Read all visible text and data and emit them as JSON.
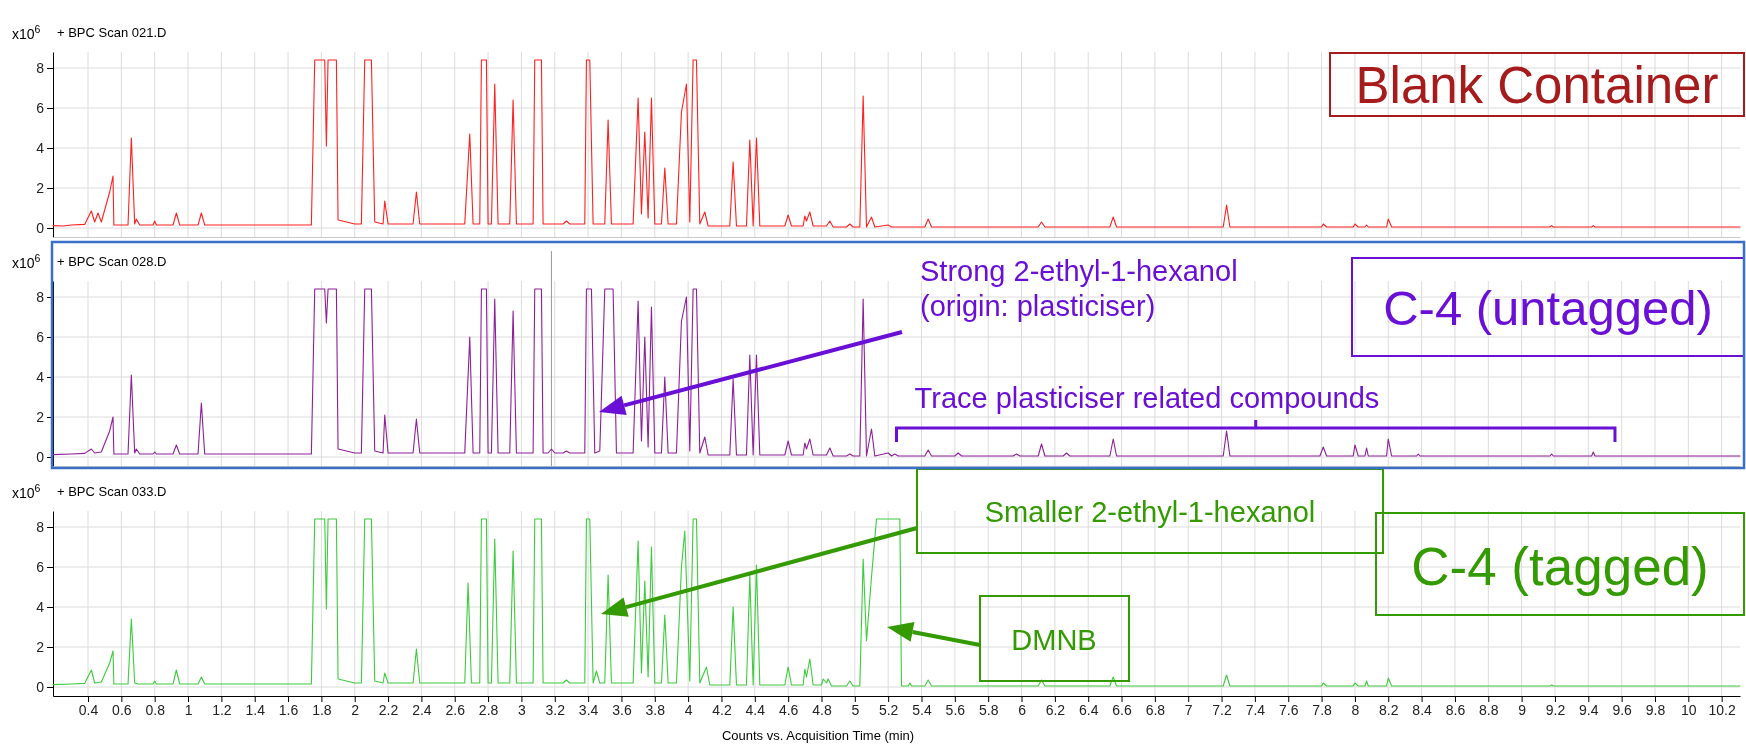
{
  "chart_data": [
    {
      "type": "line",
      "title": "+ BPC Scan 021.D",
      "ylabel": "x10$^{6}$",
      "color": "#ff2020",
      "grid": true,
      "tick_labels": "y",
      "xlim": [
        0.19,
        10.31
      ],
      "ylim": [
        -0.45,
        8.8
      ],
      "yticks": [
        0,
        2,
        4,
        6,
        8
      ],
      "xticks": [
        0.4,
        0.6,
        0.8,
        1,
        1.2,
        1.4,
        1.6,
        1.8,
        2,
        2.2,
        2.4,
        2.6,
        2.8,
        3,
        3.2,
        3.4,
        3.6,
        3.8,
        4,
        4.2,
        4.4,
        4.6,
        4.8,
        5,
        5.2,
        5.4,
        5.6,
        5.8,
        6,
        6.2,
        6.4,
        6.6,
        6.8,
        7,
        7.2,
        7.4,
        7.6,
        7.8,
        8,
        8.2,
        8.4,
        8.6,
        8.8,
        9,
        9.2,
        9.4,
        9.6,
        9.8,
        10,
        10.2
      ],
      "x": [
        0.19,
        0.25,
        0.3,
        0.38,
        0.42,
        0.44,
        0.46,
        0.48,
        0.5,
        0.53,
        0.55,
        0.555,
        0.64,
        0.66,
        0.68,
        0.69,
        0.71,
        0.79,
        0.8,
        0.81,
        0.91,
        0.93,
        0.95,
        1.06,
        1.08,
        1.1,
        1.74,
        1.76,
        1.82,
        1.83,
        1.84,
        1.89,
        1.9,
        2.0,
        2.04,
        2.06,
        2.1,
        2.12,
        2.17,
        2.18,
        2.2,
        2.35,
        2.37,
        2.39,
        2.66,
        2.69,
        2.71,
        2.75,
        2.76,
        2.79,
        2.8,
        2.82,
        2.84,
        2.86,
        2.93,
        2.95,
        2.97,
        3.07,
        3.08,
        3.12,
        3.13,
        3.25,
        3.27,
        3.29,
        3.38,
        3.39,
        3.41,
        3.43,
        3.5,
        3.52,
        3.54,
        3.67,
        3.7,
        3.72,
        3.74,
        3.76,
        3.78,
        3.8,
        3.84,
        3.86,
        3.88,
        3.93,
        3.96,
        3.99,
        4.01,
        4.03,
        4.05,
        4.07,
        4.1,
        4.12,
        4.25,
        4.27,
        4.29,
        4.35,
        4.37,
        4.39,
        4.41,
        4.43,
        4.58,
        4.6,
        4.62,
        4.69,
        4.7,
        4.71,
        4.73,
        4.75,
        4.83,
        4.85,
        4.87,
        4.95,
        4.97,
        4.99,
        5.03,
        5.05,
        5.07,
        5.1,
        5.12,
        5.2,
        5.22,
        5.42,
        5.44,
        5.46,
        6.1,
        6.12,
        6.14,
        6.53,
        6.55,
        6.57,
        7.21,
        7.23,
        7.25,
        7.8,
        7.81,
        7.83,
        7.99,
        8.0,
        8.02,
        8.06,
        8.07,
        8.08,
        8.19,
        8.2,
        8.22,
        9.17,
        9.18,
        9.19,
        9.42,
        9.43,
        9.44,
        10.31
      ],
      "values": [
        0.12,
        0.1,
        0.15,
        0.18,
        0.85,
        0.3,
        0.75,
        0.3,
        0.9,
        1.8,
        2.6,
        0.15,
        0.15,
        4.5,
        0.2,
        0.45,
        0.15,
        0.15,
        0.35,
        0.15,
        0.15,
        0.75,
        0.15,
        0.15,
        0.75,
        0.15,
        0.15,
        8.4,
        8.4,
        4.1,
        8.4,
        8.4,
        0.4,
        0.2,
        0.2,
        8.4,
        8.4,
        0.3,
        0.2,
        1.35,
        0.2,
        0.2,
        1.8,
        0.2,
        0.2,
        4.7,
        0.2,
        0.2,
        8.4,
        8.4,
        0.2,
        0.2,
        7.2,
        0.2,
        0.2,
        6.4,
        0.2,
        0.2,
        8.4,
        8.4,
        0.2,
        0.2,
        0.35,
        0.2,
        0.2,
        8.4,
        8.4,
        0.2,
        0.2,
        5.4,
        0.2,
        0.2,
        6.5,
        0.7,
        4.8,
        0.5,
        6.5,
        0.2,
        0.2,
        3.0,
        0.2,
        0.2,
        5.8,
        7.2,
        0.3,
        8.4,
        8.4,
        0.2,
        0.8,
        0.1,
        0.1,
        3.3,
        0.1,
        0.1,
        4.4,
        0.1,
        4.5,
        0.1,
        0.1,
        0.65,
        0.1,
        0.1,
        0.6,
        0.35,
        0.8,
        0.1,
        0.1,
        0.35,
        0.05,
        0.05,
        0.2,
        0.05,
        0.05,
        6.6,
        0.05,
        0.55,
        0.05,
        0.15,
        0.05,
        0.05,
        0.45,
        0.05,
        0.05,
        0.3,
        0.05,
        0.05,
        0.55,
        0.05,
        0.05,
        1.15,
        0.05,
        0.05,
        0.2,
        0.05,
        0.05,
        0.2,
        0.05,
        0.05,
        0.15,
        0.05,
        0.05,
        0.45,
        0.05,
        0.05,
        0.12,
        0.05,
        0.05,
        0.12,
        0.05,
        0.05
      ],
      "annotations": [
        "Blank Container"
      ]
    },
    {
      "type": "line",
      "title": "+ BPC Scan 028.D",
      "ylabel": "x10$^{6}$",
      "color": "#8e1f9a",
      "grid": true,
      "tick_labels": "y",
      "xlim": [
        0.19,
        10.31
      ],
      "ylim": [
        -0.45,
        8.8
      ],
      "yticks": [
        0,
        2,
        4,
        6,
        8
      ],
      "xticks": [
        0.4,
        0.6,
        0.8,
        1,
        1.2,
        1.4,
        1.6,
        1.8,
        2,
        2.2,
        2.4,
        2.6,
        2.8,
        3,
        3.2,
        3.4,
        3.6,
        3.8,
        4,
        4.2,
        4.4,
        4.6,
        4.8,
        5,
        5.2,
        5.4,
        5.6,
        5.8,
        6,
        6.2,
        6.4,
        6.6,
        6.8,
        7,
        7.2,
        7.4,
        7.6,
        7.8,
        8,
        8.2,
        8.4,
        8.6,
        8.8,
        9,
        9.2,
        9.4,
        9.6,
        9.8,
        10,
        10.2
      ],
      "x": [
        0.19,
        0.3,
        0.38,
        0.42,
        0.44,
        0.48,
        0.53,
        0.55,
        0.555,
        0.64,
        0.66,
        0.68,
        0.69,
        0.71,
        0.79,
        0.8,
        0.81,
        0.91,
        0.93,
        0.95,
        1.06,
        1.08,
        1.1,
        1.74,
        1.76,
        1.82,
        1.83,
        1.84,
        1.89,
        1.9,
        2.0,
        2.04,
        2.06,
        2.1,
        2.12,
        2.17,
        2.18,
        2.2,
        2.35,
        2.37,
        2.39,
        2.66,
        2.69,
        2.71,
        2.75,
        2.76,
        2.79,
        2.8,
        2.82,
        2.84,
        2.86,
        2.93,
        2.95,
        2.97,
        3.07,
        3.08,
        3.12,
        3.13,
        3.16,
        3.18,
        3.2,
        3.25,
        3.27,
        3.29,
        3.38,
        3.39,
        3.42,
        3.44,
        3.47,
        3.5,
        3.55,
        3.57,
        3.67,
        3.7,
        3.72,
        3.74,
        3.76,
        3.78,
        3.8,
        3.84,
        3.86,
        3.88,
        3.93,
        3.96,
        3.99,
        4.01,
        4.03,
        4.05,
        4.07,
        4.1,
        4.12,
        4.25,
        4.27,
        4.29,
        4.35,
        4.37,
        4.39,
        4.41,
        4.43,
        4.58,
        4.6,
        4.62,
        4.69,
        4.7,
        4.71,
        4.73,
        4.75,
        4.83,
        4.85,
        4.87,
        4.95,
        4.97,
        4.99,
        5.03,
        5.05,
        5.07,
        5.1,
        5.12,
        5.2,
        5.22,
        5.24,
        5.26,
        5.42,
        5.44,
        5.46,
        5.6,
        5.62,
        5.64,
        5.95,
        5.97,
        5.99,
        6.1,
        6.12,
        6.14,
        6.25,
        6.27,
        6.29,
        6.53,
        6.55,
        6.57,
        7.21,
        7.23,
        7.25,
        7.79,
        7.81,
        7.83,
        7.99,
        8.0,
        8.02,
        8.06,
        8.07,
        8.08,
        8.19,
        8.2,
        8.22,
        8.37,
        8.38,
        8.39,
        9.17,
        9.18,
        9.19,
        9.42,
        9.43,
        9.44,
        10.31
      ],
      "values": [
        0.12,
        0.15,
        0.18,
        0.4,
        0.2,
        0.25,
        1.3,
        2.0,
        0.15,
        0.15,
        4.1,
        0.2,
        0.4,
        0.15,
        0.15,
        0.25,
        0.15,
        0.15,
        0.6,
        0.15,
        0.15,
        2.7,
        0.15,
        0.15,
        8.4,
        8.4,
        6.7,
        8.4,
        8.4,
        0.4,
        0.2,
        0.2,
        8.4,
        8.4,
        0.3,
        0.2,
        2.1,
        0.2,
        0.2,
        1.9,
        0.2,
        0.2,
        6.0,
        0.2,
        0.2,
        8.4,
        8.4,
        0.2,
        0.2,
        7.9,
        0.2,
        0.2,
        7.3,
        0.2,
        0.2,
        8.4,
        8.4,
        0.2,
        0.2,
        0.4,
        0.2,
        0.2,
        0.3,
        0.2,
        0.2,
        8.4,
        8.4,
        0.2,
        0.3,
        8.4,
        8.4,
        0.2,
        0.2,
        7.8,
        0.8,
        6.0,
        0.5,
        7.5,
        0.2,
        0.2,
        4.0,
        0.2,
        0.2,
        6.8,
        8.0,
        0.3,
        8.4,
        8.4,
        0.2,
        1.0,
        0.1,
        0.1,
        3.9,
        0.1,
        0.1,
        5.1,
        0.1,
        5.1,
        0.1,
        0.1,
        0.8,
        0.1,
        0.1,
        0.7,
        0.4,
        0.9,
        0.1,
        0.1,
        0.45,
        0.05,
        0.05,
        0.15,
        0.05,
        0.05,
        7.9,
        0.05,
        1.4,
        0.05,
        0.2,
        0.05,
        0.15,
        0.05,
        0.05,
        0.35,
        0.05,
        0.05,
        0.2,
        0.05,
        0.05,
        0.15,
        0.05,
        0.05,
        0.65,
        0.05,
        0.05,
        0.2,
        0.05,
        0.05,
        0.9,
        0.05,
        0.05,
        1.3,
        0.05,
        0.05,
        0.5,
        0.05,
        0.05,
        0.6,
        0.05,
        0.05,
        0.45,
        0.05,
        0.05,
        0.9,
        0.05,
        0.05,
        0.15,
        0.05,
        0.05,
        0.15,
        0.05,
        0.05,
        0.25,
        0.05,
        0.05
      ],
      "ref_lines": [
        {
          "axis": "x",
          "value": 3.18,
          "color": "#999999"
        }
      ],
      "annotations": [
        "Strong 2-ethyl-1-hexanol\n(origin: plasticiser)",
        "C-4 (untagged)",
        "Trace plasticiser related compounds"
      ]
    },
    {
      "type": "line",
      "title": "+ BPC Scan 033.D",
      "ylabel": "x10$^{6}$",
      "xlabel": "Counts vs. Acquisition Time (min)",
      "color": "#3ccc3c",
      "grid": true,
      "xlim": [
        0.19,
        10.31
      ],
      "ylim": [
        -0.45,
        8.8
      ],
      "yticks": [
        0,
        2,
        4,
        6,
        8
      ],
      "xticks": [
        0.4,
        0.6,
        0.8,
        1,
        1.2,
        1.4,
        1.6,
        1.8,
        2,
        2.2,
        2.4,
        2.6,
        2.8,
        3,
        3.2,
        3.4,
        3.6,
        3.8,
        4,
        4.2,
        4.4,
        4.6,
        4.8,
        5,
        5.2,
        5.4,
        5.6,
        5.8,
        6,
        6.2,
        6.4,
        6.6,
        6.8,
        7,
        7.2,
        7.4,
        7.6,
        7.8,
        8,
        8.2,
        8.4,
        8.6,
        8.8,
        9,
        9.2,
        9.4,
        9.6,
        9.8,
        10,
        10.2
      ],
      "x": [
        0.19,
        0.3,
        0.38,
        0.42,
        0.44,
        0.48,
        0.53,
        0.55,
        0.555,
        0.64,
        0.66,
        0.68,
        0.7,
        0.79,
        0.8,
        0.81,
        0.91,
        0.93,
        0.95,
        1.06,
        1.08,
        1.1,
        1.74,
        1.76,
        1.82,
        1.83,
        1.84,
        1.89,
        1.9,
        2.0,
        2.04,
        2.06,
        2.1,
        2.12,
        2.17,
        2.18,
        2.2,
        2.35,
        2.37,
        2.39,
        2.66,
        2.68,
        2.7,
        2.75,
        2.76,
        2.79,
        2.8,
        2.82,
        2.84,
        2.86,
        2.93,
        2.95,
        2.97,
        3.07,
        3.08,
        3.12,
        3.13,
        3.25,
        3.27,
        3.29,
        3.38,
        3.39,
        3.41,
        3.43,
        3.45,
        3.47,
        3.5,
        3.52,
        3.54,
        3.67,
        3.7,
        3.72,
        3.74,
        3.76,
        3.78,
        3.8,
        3.84,
        3.86,
        3.88,
        3.93,
        3.96,
        3.98,
        4.01,
        4.03,
        4.05,
        4.07,
        4.11,
        4.13,
        4.25,
        4.27,
        4.29,
        4.35,
        4.37,
        4.39,
        4.41,
        4.43,
        4.58,
        4.6,
        4.62,
        4.69,
        4.7,
        4.71,
        4.73,
        4.75,
        4.8,
        4.81,
        4.83,
        4.84,
        4.86,
        4.95,
        4.97,
        4.99,
        5.03,
        5.05,
        5.07,
        5.1,
        5.13,
        5.27,
        5.28,
        5.32,
        5.33,
        5.34,
        5.42,
        5.44,
        5.46,
        6.1,
        6.12,
        6.14,
        6.53,
        6.55,
        6.57,
        7.21,
        7.23,
        7.25,
        7.8,
        7.81,
        7.83,
        7.99,
        8.0,
        8.02,
        8.06,
        8.07,
        8.08,
        8.19,
        8.2,
        8.22,
        9.17,
        9.18,
        9.19,
        10.31
      ],
      "values": [
        0.12,
        0.15,
        0.18,
        0.85,
        0.2,
        0.25,
        1.2,
        1.8,
        0.15,
        0.15,
        3.4,
        0.2,
        0.15,
        0.15,
        0.3,
        0.15,
        0.15,
        0.85,
        0.15,
        0.15,
        0.5,
        0.15,
        0.15,
        8.4,
        8.4,
        3.9,
        8.4,
        8.4,
        0.4,
        0.2,
        0.2,
        8.4,
        8.4,
        0.3,
        0.2,
        0.7,
        0.2,
        0.2,
        1.9,
        0.2,
        0.2,
        5.2,
        0.2,
        0.2,
        8.4,
        8.4,
        0.2,
        0.2,
        7.4,
        0.2,
        0.2,
        6.8,
        0.2,
        0.2,
        8.4,
        8.4,
        0.2,
        0.2,
        0.35,
        0.2,
        0.2,
        8.4,
        8.4,
        0.2,
        0.8,
        0.2,
        0.2,
        5.6,
        0.2,
        0.2,
        7.3,
        0.7,
        5.3,
        0.5,
        7.0,
        0.2,
        0.2,
        3.6,
        0.2,
        0.2,
        6.0,
        7.8,
        0.3,
        8.4,
        8.4,
        0.2,
        1.0,
        0.1,
        0.1,
        4.0,
        0.1,
        0.1,
        5.6,
        0.1,
        6.1,
        0.1,
        0.1,
        1.0,
        0.1,
        0.1,
        0.9,
        0.5,
        1.4,
        0.1,
        0.1,
        0.4,
        0.2,
        0.4,
        0.05,
        0.05,
        0.3,
        0.05,
        0.05,
        6.4,
        2.3,
        5.5,
        8.4,
        8.4,
        0.05,
        0.05,
        0.2,
        0.05,
        0.05,
        0.35,
        0.05,
        0.05,
        0.35,
        0.05,
        0.05,
        0.5,
        0.05,
        0.05,
        0.6,
        0.05,
        0.05,
        0.2,
        0.05,
        0.05,
        0.2,
        0.05,
        0.05,
        0.3,
        0.05,
        0.05,
        0.45,
        0.05,
        0.05,
        0.1,
        0.05,
        0.05
      ],
      "annotations": [
        "Smaller 2-ethyl-1-hexanol",
        "DMNB",
        "C-4 (tagged)"
      ]
    }
  ]
}
